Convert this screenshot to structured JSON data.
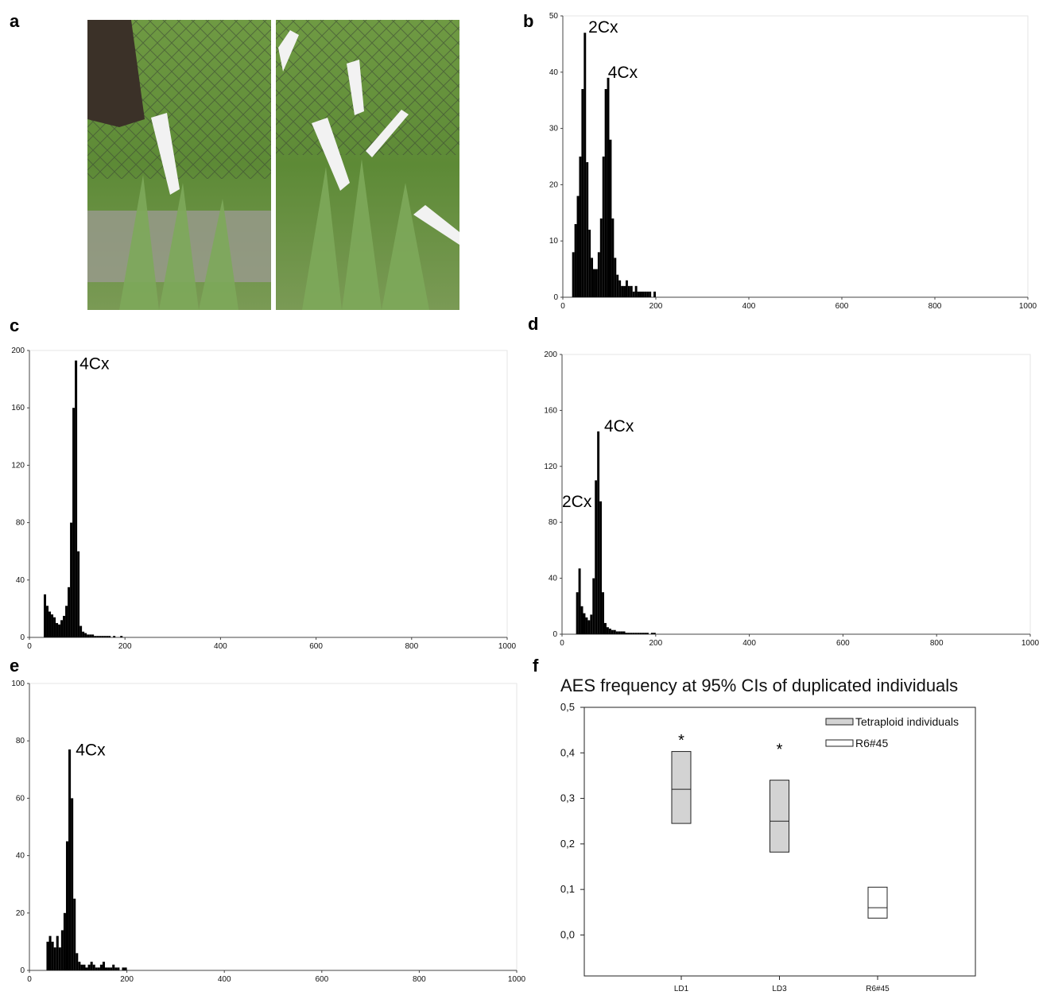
{
  "photo": {
    "panel": "a"
  },
  "chart_data": [
    {
      "type": "histogram",
      "panel": "b",
      "color": "#000000",
      "bins": [
        15,
        20,
        25,
        30,
        35,
        40,
        45,
        50,
        55,
        60,
        65,
        70,
        75,
        80,
        85,
        90,
        95,
        100,
        105,
        110,
        115,
        120,
        125,
        130,
        135,
        140,
        145,
        150,
        155,
        160,
        165,
        170,
        175,
        180,
        185,
        190,
        195,
        200
      ],
      "values": [
        0,
        8,
        13,
        18,
        25,
        37,
        47,
        24,
        12,
        7,
        5,
        5,
        8,
        14,
        25,
        37,
        39,
        28,
        14,
        7,
        4,
        3,
        2,
        2,
        3,
        2,
        2,
        1,
        2,
        1,
        1,
        1,
        1,
        1,
        1,
        0,
        1
      ],
      "xlim": [
        0,
        1000
      ],
      "xticks": [
        0,
        200,
        400,
        600,
        800,
        1000
      ],
      "ylim": [
        0,
        50
      ],
      "yticks": [
        0,
        10,
        20,
        30,
        40,
        50
      ],
      "annotations": [
        {
          "text": "2Cx",
          "x": 55,
          "y": 47
        },
        {
          "text": "4Cx",
          "x": 97,
          "y": 39
        }
      ]
    },
    {
      "type": "histogram",
      "panel": "c",
      "color": "#000000",
      "bins": [
        25,
        30,
        35,
        40,
        45,
        50,
        55,
        60,
        65,
        70,
        75,
        80,
        85,
        90,
        95,
        100,
        105,
        110,
        115,
        120,
        125,
        130,
        135,
        140,
        145,
        150,
        155,
        160,
        165,
        170,
        175,
        180,
        185,
        190,
        195,
        200
      ],
      "values": [
        0,
        30,
        22,
        18,
        16,
        14,
        10,
        9,
        12,
        15,
        22,
        35,
        80,
        160,
        193,
        60,
        8,
        4,
        3,
        2,
        2,
        2,
        1,
        1,
        1,
        1,
        1,
        1,
        1,
        0,
        1,
        0,
        0,
        1,
        0
      ],
      "xlim": [
        0,
        1000
      ],
      "xticks": [
        0,
        200,
        400,
        600,
        800,
        1000
      ],
      "ylim": [
        0,
        200
      ],
      "yticks": [
        0,
        40,
        80,
        120,
        160,
        200
      ],
      "annotations": [
        {
          "text": "4Cx",
          "x": 105,
          "y": 187
        }
      ]
    },
    {
      "type": "histogram",
      "panel": "d",
      "color": "#000000",
      "bins": [
        25,
        30,
        35,
        40,
        45,
        50,
        55,
        60,
        65,
        70,
        75,
        80,
        85,
        90,
        95,
        100,
        105,
        110,
        115,
        120,
        125,
        130,
        135,
        140,
        145,
        150,
        155,
        160,
        165,
        170,
        175,
        180,
        185,
        190,
        195,
        200
      ],
      "values": [
        0,
        30,
        47,
        20,
        15,
        12,
        10,
        14,
        40,
        110,
        145,
        95,
        30,
        8,
        5,
        4,
        3,
        3,
        2,
        2,
        2,
        2,
        1,
        1,
        1,
        1,
        1,
        1,
        1,
        1,
        1,
        1,
        0,
        1,
        1
      ],
      "xlim": [
        0,
        1000
      ],
      "xticks": [
        0,
        200,
        400,
        600,
        800,
        1000
      ],
      "ylim": [
        0,
        200
      ],
      "yticks": [
        0,
        40,
        80,
        120,
        160,
        200
      ],
      "annotations": [
        {
          "text": "4Cx",
          "x": 90,
          "y": 145
        },
        {
          "text": "2Cx",
          "x": 0,
          "y": 91
        }
      ]
    },
    {
      "type": "histogram",
      "panel": "e",
      "color": "#000000",
      "bins": [
        30,
        35,
        40,
        45,
        50,
        55,
        60,
        65,
        70,
        75,
        80,
        85,
        90,
        95,
        100,
        105,
        110,
        115,
        120,
        125,
        130,
        135,
        140,
        145,
        150,
        155,
        160,
        165,
        170,
        175,
        180,
        185,
        190,
        195,
        200
      ],
      "values": [
        0,
        10,
        12,
        10,
        8,
        12,
        8,
        14,
        20,
        45,
        77,
        60,
        25,
        6,
        3,
        2,
        2,
        1,
        2,
        3,
        2,
        1,
        1,
        2,
        3,
        1,
        1,
        1,
        2,
        1,
        1,
        0,
        1,
        1
      ],
      "xlim": [
        0,
        1000
      ],
      "xticks": [
        0,
        200,
        400,
        600,
        800,
        1000
      ],
      "ylim": [
        0,
        100
      ],
      "yticks": [
        0,
        20,
        40,
        60,
        80,
        100
      ],
      "annotations": [
        {
          "text": "4Cx",
          "x": 95,
          "y": 75
        }
      ]
    },
    {
      "type": "box",
      "panel": "f",
      "title": "AES frequency at 95% CIs of duplicated individuals",
      "categories": [
        "LD1",
        "LD3",
        "R6#45"
      ],
      "series": [
        {
          "name": "Tetraploid individuals",
          "color": "#d3d3d3",
          "low": [
            0.245,
            0.182,
            null
          ],
          "median": [
            0.32,
            0.25,
            null
          ],
          "high": [
            0.403,
            0.34,
            null
          ]
        },
        {
          "name": "R6#45",
          "color": "#ffffff",
          "low": [
            null,
            null,
            0.037
          ],
          "median": [
            null,
            null,
            0.06
          ],
          "high": [
            null,
            null,
            0.105
          ]
        }
      ],
      "ylim": [
        -0.09,
        0.5
      ],
      "yticks": [
        {
          "value": 0,
          "label": "0,0"
        },
        {
          "value": 0.1,
          "label": "0,1"
        },
        {
          "value": 0.2,
          "label": "0,2"
        },
        {
          "value": 0.3,
          "label": "0,3"
        },
        {
          "value": 0.4,
          "label": "0,4"
        },
        {
          "value": 0.5,
          "label": "0,5"
        }
      ],
      "annotations": [
        {
          "text": "*",
          "category": 0,
          "y": 0.43
        },
        {
          "text": "*",
          "category": 1,
          "y": 0.41
        }
      ]
    }
  ]
}
